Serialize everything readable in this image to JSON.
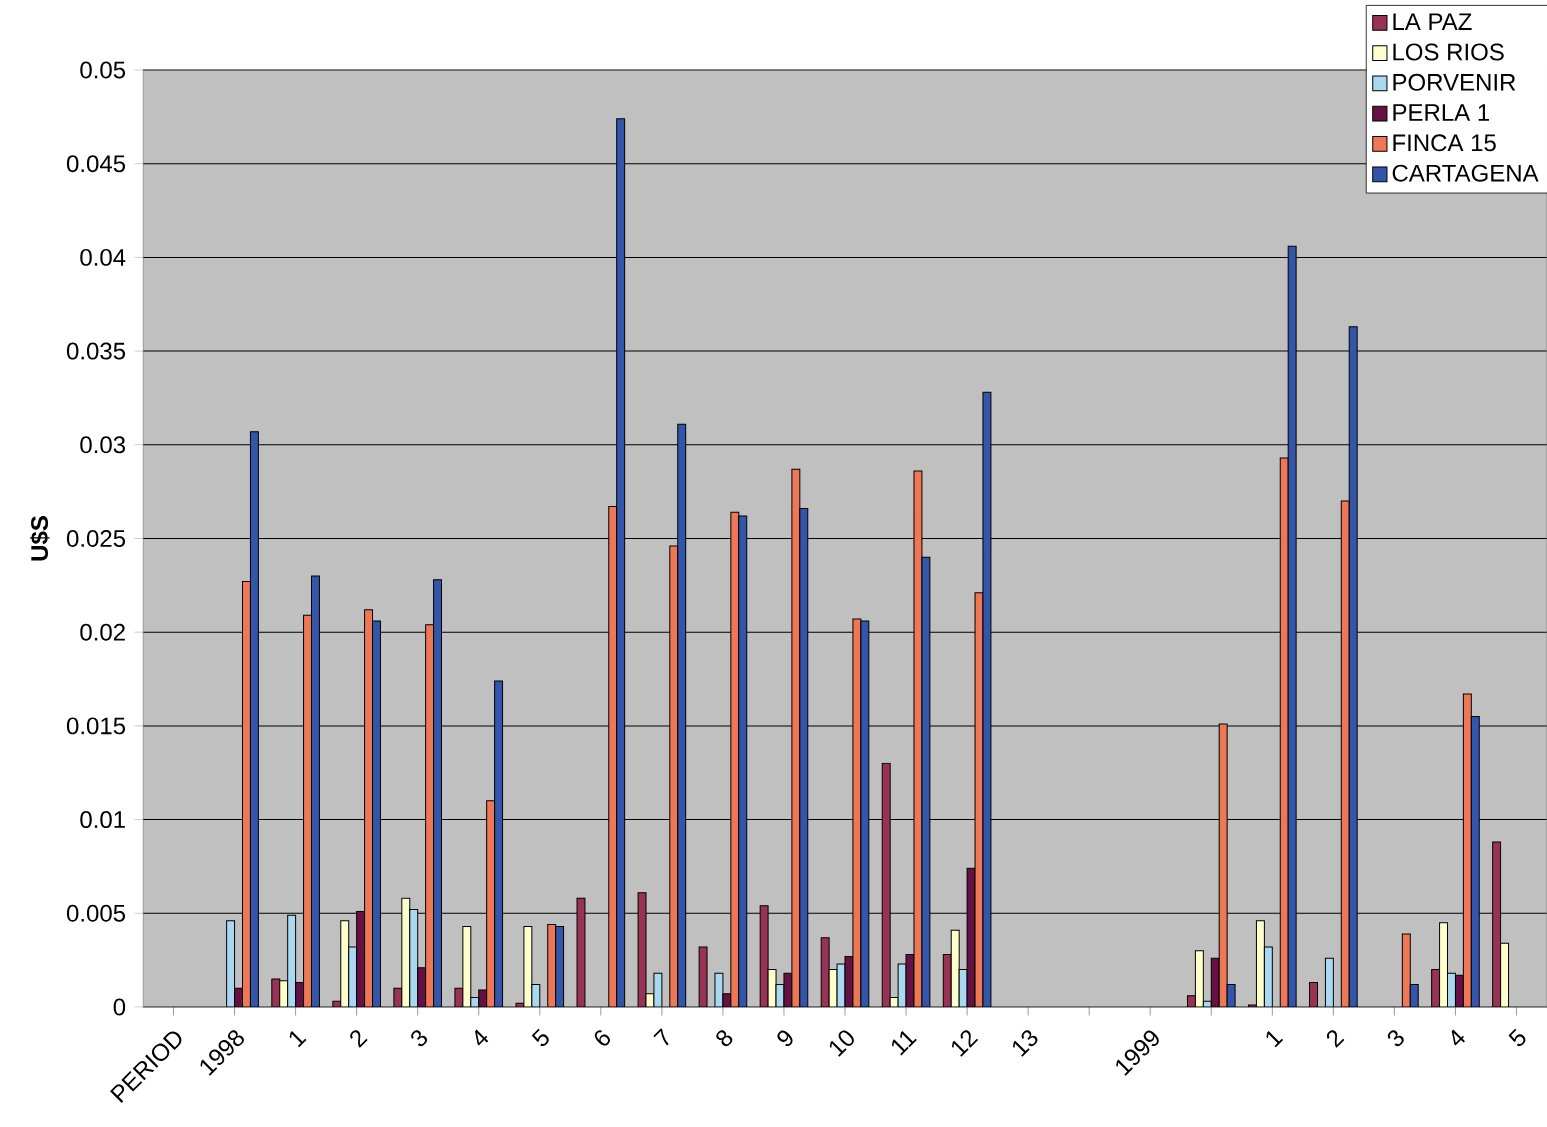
{
  "chart_data": {
    "type": "bar",
    "ylabel": "U$S",
    "categories": [
      "PERIOD",
      "1998",
      "1",
      "2",
      "3",
      "4",
      "5",
      "6",
      "7",
      "8",
      "9",
      "10",
      "11",
      "12",
      "13",
      null,
      "1999",
      null,
      "1",
      "2",
      "3",
      "4",
      "5"
    ],
    "series": [
      {
        "name": "LA PAZ",
        "color": "#993355",
        "values": [
          null,
          null,
          0.0015,
          0.0003,
          0.001,
          0.001,
          0.0002,
          0.0058,
          0.0061,
          0.0032,
          0.0054,
          0.0037,
          0.013,
          0.0028,
          null,
          null,
          null,
          0.0006,
          0.0001,
          0.0013,
          null,
          0.002,
          0.0088
        ]
      },
      {
        "name": "LOS RIOS",
        "color": "#ffffcc",
        "values": [
          null,
          null,
          0.0014,
          0.0046,
          0.0058,
          0.0043,
          0.0043,
          null,
          0.0007,
          null,
          0.002,
          0.002,
          0.0005,
          0.0041,
          null,
          null,
          null,
          0.003,
          0.0046,
          null,
          null,
          0.0045,
          0.0034
        ]
      },
      {
        "name": "PORVENIR",
        "color": "#aad8f0",
        "values": [
          null,
          0.0046,
          0.0049,
          0.0032,
          0.0052,
          0.0005,
          0.0012,
          null,
          0.0018,
          0.0018,
          0.0012,
          0.0023,
          0.0023,
          0.002,
          null,
          null,
          null,
          0.0003,
          0.0032,
          0.0026,
          null,
          0.0018,
          null
        ]
      },
      {
        "name": "PERLA 1",
        "color": "#661144",
        "values": [
          null,
          0.001,
          0.0013,
          0.0051,
          0.0021,
          0.0009,
          null,
          null,
          null,
          0.0007,
          0.0018,
          0.0027,
          0.0028,
          0.0074,
          null,
          null,
          null,
          0.0026,
          null,
          null,
          null,
          0.0017,
          null
        ]
      },
      {
        "name": "FINCA 15",
        "color": "#ee7755",
        "values": [
          null,
          0.0227,
          0.0209,
          0.0212,
          0.0204,
          0.011,
          0.0044,
          0.0267,
          0.0246,
          0.0264,
          0.0287,
          0.0207,
          0.0286,
          0.0221,
          null,
          null,
          null,
          0.0151,
          0.0293,
          0.027,
          0.0039,
          0.0167,
          null
        ]
      },
      {
        "name": "CARTAGENA",
        "color": "#3355aa",
        "values": [
          null,
          0.0307,
          0.023,
          0.0206,
          0.0228,
          0.0174,
          0.0043,
          0.0474,
          0.0311,
          0.0262,
          0.0266,
          0.0206,
          0.024,
          0.0328,
          null,
          null,
          null,
          0.0012,
          0.0406,
          0.0363,
          0.0012,
          0.0155,
          null
        ]
      }
    ],
    "ylim": [
      0,
      0.05
    ],
    "yticks": [
      0,
      0.005,
      0.01,
      0.015,
      0.02,
      0.025,
      0.03,
      0.035,
      0.04,
      0.045,
      0.05
    ],
    "grid": "y",
    "legend": "top right"
  }
}
